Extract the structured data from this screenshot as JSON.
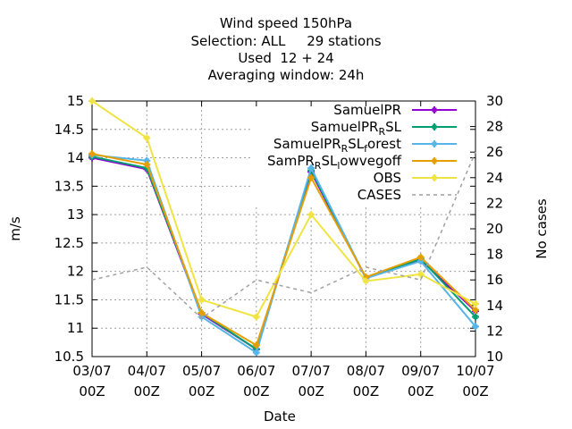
{
  "chart_data": {
    "type": "line",
    "title_lines": [
      "Wind speed 150hPa",
      "Selection: ALL     29 stations",
      "Used  12 + 24",
      "Averaging window: 24h"
    ],
    "xlabel": "Date",
    "ylabel": "m/s",
    "y2label": "No cases",
    "categories": [
      "03/07 00Z",
      "04/07 00Z",
      "05/07 00Z",
      "06/07 00Z",
      "07/07 00Z",
      "08/07 00Z",
      "09/07 00Z",
      "10/07 00Z"
    ],
    "category_lines": [
      [
        "03/07",
        "00Z"
      ],
      [
        "04/07",
        "00Z"
      ],
      [
        "05/07",
        "00Z"
      ],
      [
        "06/07",
        "00Z"
      ],
      [
        "07/07",
        "00Z"
      ],
      [
        "08/07",
        "00Z"
      ],
      [
        "09/07",
        "00Z"
      ],
      [
        "10/07",
        "00Z"
      ]
    ],
    "ylim": [
      10.5,
      15
    ],
    "y_ticks": [
      "10.5",
      "11",
      "11.5",
      "12",
      "12.5",
      "13",
      "13.5",
      "14",
      "14.5",
      "15"
    ],
    "y2lim": [
      10,
      30
    ],
    "y2_ticks": [
      "10",
      "12",
      "14",
      "16",
      "18",
      "20",
      "22",
      "24",
      "26",
      "28",
      "30"
    ],
    "grid": true,
    "legend_position": "top-right",
    "series": [
      {
        "name": "SamuelPR",
        "legend_main": "SamuelPR",
        "legend_sub": "",
        "legend_tail": "",
        "color": "#9400d3",
        "axis": "y",
        "dashed": false,
        "values": [
          14.0,
          13.8,
          11.25,
          10.63,
          13.75,
          11.88,
          12.2,
          11.3
        ]
      },
      {
        "name": "SamuelPR_R SL",
        "legend_main": "SamuelPR",
        "legend_sub": "R",
        "legend_tail": "SL",
        "color": "#009e73",
        "axis": "y",
        "dashed": false,
        "values": [
          14.02,
          13.82,
          11.27,
          10.63,
          13.78,
          11.88,
          12.22,
          11.2
        ]
      },
      {
        "name": "SamuelPR_R SL_forest",
        "legend_main": "SamuelPR",
        "legend_sub": "R",
        "legend_tail": "SL",
        "legend_sub2": "f",
        "legend_tail2": "orest",
        "color": "#56b4e9",
        "axis": "y",
        "dashed": false,
        "values": [
          14.05,
          13.95,
          11.2,
          10.57,
          13.82,
          11.88,
          12.18,
          11.03
        ]
      },
      {
        "name": "SamPR_R SL_lowvegoff",
        "legend_main": "SamPR",
        "legend_sub": "R",
        "legend_tail": "SL",
        "legend_sub2": "l",
        "legend_tail2": "owvegoff",
        "color": "#e69f00",
        "axis": "y",
        "dashed": false,
        "values": [
          14.07,
          13.88,
          11.27,
          10.7,
          13.65,
          11.9,
          12.25,
          11.32
        ]
      },
      {
        "name": "OBS",
        "legend_main": "OBS",
        "legend_sub": "",
        "legend_tail": "",
        "color": "#f0e442",
        "axis": "y",
        "dashed": false,
        "values": [
          15.0,
          14.35,
          11.5,
          11.2,
          13.0,
          11.83,
          11.95,
          11.43
        ]
      },
      {
        "name": "CASES",
        "legend_main": "CASES",
        "legend_sub": "",
        "legend_tail": "",
        "color": "#a0a0a0",
        "axis": "y2",
        "dashed": true,
        "values": [
          16,
          17,
          13,
          16,
          15,
          17,
          16,
          26
        ]
      }
    ]
  }
}
